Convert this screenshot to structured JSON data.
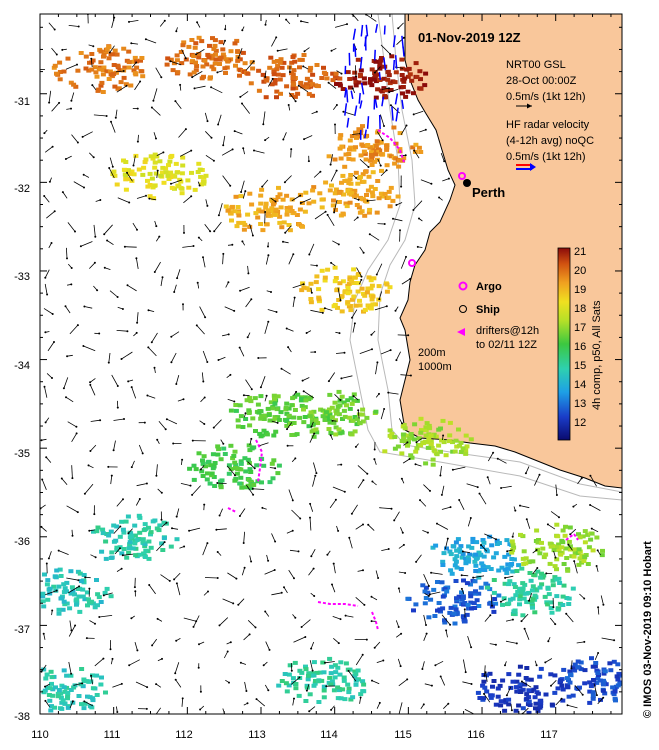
{
  "title": "01-Nov-2019 12Z",
  "legend": {
    "gsl_line1": "NRT00 GSL",
    "gsl_line2": "28-Oct 00:00Z",
    "gsl_line3": "0.5m/s (1kt 12h)",
    "hf_line1": "HF radar velocity",
    "hf_line2": "(4-12h avg) noQC",
    "hf_line3": "0.5m/s (1kt 12h)",
    "argo": "Argo",
    "ship": "Ship",
    "drifters_line1": "drifters@12h",
    "drifters_line2": "to 02/11 12Z",
    "isobath_200": "200m",
    "isobath_1000": "1000m",
    "perth": "Perth"
  },
  "colorbar": {
    "label": "4h comp, p50, All Sats",
    "ticks": [
      "21",
      "20",
      "19",
      "18",
      "17",
      "16",
      "15",
      "14",
      "13",
      "12"
    ]
  },
  "credit": "© IMOS 03-Nov-2019 09:10 Hobart",
  "axes": {
    "x_ticks": [
      "110",
      "111",
      "112",
      "113",
      "114",
      "115",
      "116",
      "117"
    ],
    "y_ticks": [
      "-31",
      "-32",
      "-33",
      "-34",
      "-35",
      "-36",
      "-37",
      "-38"
    ]
  },
  "colors": {
    "land": "#f9c79b",
    "coast": "#000000",
    "isobath": "#b9b9b9",
    "argo": "#ff00ff",
    "drifter": "#ff00ff",
    "hf_arrow_a": "#ff0000",
    "hf_arrow_b": "#0000ff"
  },
  "sst_patches": [
    {
      "lon": 114.6,
      "lat": -30.8,
      "temp": 20.8
    },
    {
      "lon": 113.4,
      "lat": -30.8,
      "temp": 19.8
    },
    {
      "lon": 112.3,
      "lat": -30.6,
      "temp": 19.6
    },
    {
      "lon": 110.8,
      "lat": -30.7,
      "temp": 19.5
    },
    {
      "lon": 114.5,
      "lat": -31.6,
      "temp": 19.2
    },
    {
      "lon": 113.1,
      "lat": -32.3,
      "temp": 18.8
    },
    {
      "lon": 114.2,
      "lat": -32.1,
      "temp": 18.9
    },
    {
      "lon": 111.6,
      "lat": -31.9,
      "temp": 17.8
    },
    {
      "lon": 114.1,
      "lat": -33.2,
      "temp": 18.4
    },
    {
      "lon": 113.2,
      "lat": -34.6,
      "temp": 16.2
    },
    {
      "lon": 112.6,
      "lat": -35.2,
      "temp": 16.0
    },
    {
      "lon": 113.9,
      "lat": -34.6,
      "temp": 16.4
    },
    {
      "lon": 115.2,
      "lat": -34.9,
      "temp": 16.8
    },
    {
      "lon": 111.2,
      "lat": -36.0,
      "temp": 15.0
    },
    {
      "lon": 110.3,
      "lat": -36.6,
      "temp": 14.8
    },
    {
      "lon": 115.9,
      "lat": -36.2,
      "temp": 14.2
    },
    {
      "lon": 115.6,
      "lat": -36.7,
      "temp": 13.3
    },
    {
      "lon": 117.0,
      "lat": -36.1,
      "temp": 16.8
    },
    {
      "lon": 116.6,
      "lat": -36.6,
      "temp": 15.2
    },
    {
      "lon": 110.3,
      "lat": -37.7,
      "temp": 14.9
    },
    {
      "lon": 116.5,
      "lat": -37.7,
      "temp": 12.8
    },
    {
      "lon": 113.8,
      "lat": -37.6,
      "temp": 15.1
    },
    {
      "lon": 117.6,
      "lat": -37.6,
      "temp": 13.1
    }
  ]
}
